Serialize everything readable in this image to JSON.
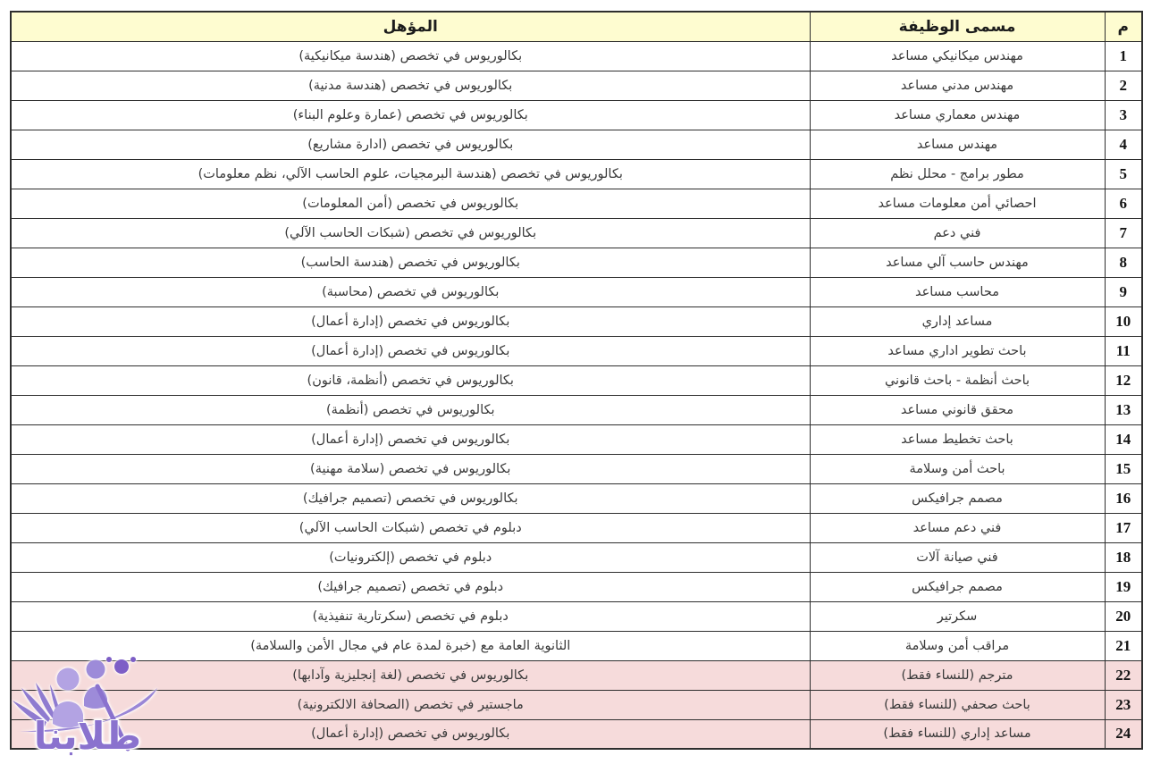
{
  "table": {
    "headers": {
      "number": "م",
      "job_title": "مسمى الوظيفة",
      "qualification": "المؤهل"
    },
    "rows": [
      {
        "num": "1",
        "job": "مهندس ميكانيكي مساعد",
        "qual": "بكالوريوس في تخصص (هندسة ميكانيكية)",
        "women_only": false
      },
      {
        "num": "2",
        "job": "مهندس مدني مساعد",
        "qual": "بكالوريوس في تخصص (هندسة مدنية)",
        "women_only": false
      },
      {
        "num": "3",
        "job": "مهندس معماري مساعد",
        "qual": "بكالوريوس في تخصص (عمارة وعلوم البناء)",
        "women_only": false
      },
      {
        "num": "4",
        "job": "مهندس مساعد",
        "qual": "بكالوريوس في تخصص (ادارة مشاريع)",
        "women_only": false
      },
      {
        "num": "5",
        "job": "مطور برامج - محلل نظم",
        "qual": "بكالوريوس في تخصص (هندسة البرمجيات، علوم الحاسب الآلي، نظم معلومات)",
        "women_only": false
      },
      {
        "num": "6",
        "job": "احصائي أمن معلومات مساعد",
        "qual": "بكالوريوس في تخصص (أمن المعلومات)",
        "women_only": false
      },
      {
        "num": "7",
        "job": "فني دعم",
        "qual": "بكالوريوس في تخصص (شبكات الحاسب الآلي)",
        "women_only": false
      },
      {
        "num": "8",
        "job": "مهندس حاسب آلي مساعد",
        "qual": "بكالوريوس في تخصص (هندسة الحاسب)",
        "women_only": false
      },
      {
        "num": "9",
        "job": "محاسب مساعد",
        "qual": "بكالوريوس في تخصص (محاسبة)",
        "women_only": false
      },
      {
        "num": "10",
        "job": "مساعد إداري",
        "qual": "بكالوريوس في تخصص (إدارة أعمال)",
        "women_only": false
      },
      {
        "num": "11",
        "job": "باحث تطوير اداري مساعد",
        "qual": "بكالوريوس في تخصص (إدارة أعمال)",
        "women_only": false
      },
      {
        "num": "12",
        "job": "باحث أنظمة - باحث قانوني",
        "qual": "بكالوريوس في تخصص (أنظمة، قانون)",
        "women_only": false
      },
      {
        "num": "13",
        "job": "محقق قانوني مساعد",
        "qual": "بكالوريوس في تخصص (أنظمة)",
        "women_only": false
      },
      {
        "num": "14",
        "job": "باحث تخطيط مساعد",
        "qual": "بكالوريوس في تخصص (إدارة أعمال)",
        "women_only": false
      },
      {
        "num": "15",
        "job": "باحث أمن وسلامة",
        "qual": "بكالوريوس في تخصص (سلامة مهنية)",
        "women_only": false
      },
      {
        "num": "16",
        "job": "مصمم جرافيكس",
        "qual": "بكالوريوس في تخصص (تصميم جرافيك)",
        "women_only": false
      },
      {
        "num": "17",
        "job": "فني دعم مساعد",
        "qual": "دبلوم في تخصص (شبكات الحاسب الآلي)",
        "women_only": false
      },
      {
        "num": "18",
        "job": "فني صيانة آلات",
        "qual": "دبلوم في تخصص (إلكترونيات)",
        "women_only": false
      },
      {
        "num": "19",
        "job": "مصمم جرافيكس",
        "qual": "دبلوم في تخصص (تصميم جرافيك)",
        "women_only": false
      },
      {
        "num": "20",
        "job": "سكرتير",
        "qual": "دبلوم في تخصص (سكرتارية تنفيذية)",
        "women_only": false
      },
      {
        "num": "21",
        "job": "مراقب أمن وسلامة",
        "qual": "الثانوية العامة مع (خبرة لمدة عام في مجال الأمن والسلامة)",
        "women_only": false
      },
      {
        "num": "22",
        "job": "مترجم (للنساء فقط)",
        "qual": "بكالوريوس في تخصص (لغة إنجليزية وآدابها)",
        "women_only": true
      },
      {
        "num": "23",
        "job": "باحث صحفي (للنساء فقط)",
        "qual": "ماجستير في تخصص (الصحافة الالكترونية)",
        "women_only": true
      },
      {
        "num": "24",
        "job": "مساعد إداري (للنساء فقط)",
        "qual": "بكالوريوس في تخصص (إدارة أعمال)",
        "women_only": true
      }
    ]
  },
  "watermark": {
    "name": "طلابنا"
  },
  "colors": {
    "header_bg": "#fefcd0",
    "women_row_bg": "#f6dbdb",
    "border": "#2e2e2e",
    "watermark_purple": "#8a72ce",
    "watermark_purple_light": "#b3a3e3",
    "watermark_purple_mid": "#9d8bd9",
    "watermark_purple_dark": "#7d5ec6"
  }
}
